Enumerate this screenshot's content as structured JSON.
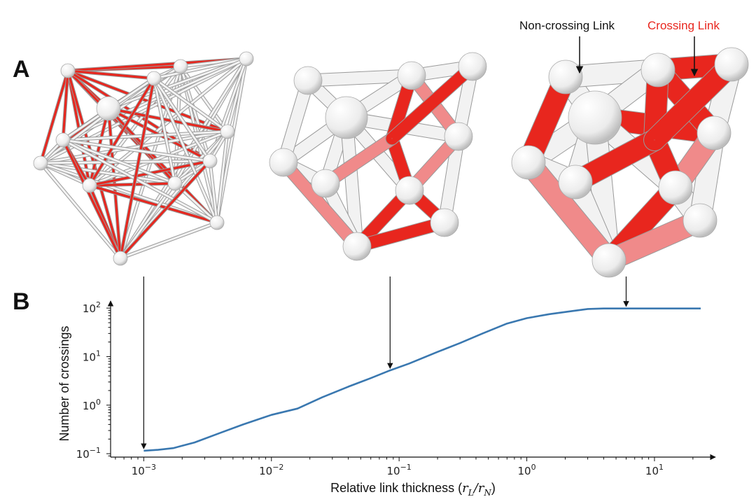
{
  "panel_labels": {
    "a": "A",
    "b": "B"
  },
  "annotations": {
    "non_crossing": "Non-crossing Link",
    "crossing": "Crossing Link"
  },
  "colors": {
    "line": "#3a78b0",
    "crossing_link": "#e8261e",
    "crossing_link_light": "#f08a8a",
    "non_crossing_link": "#f2f2f2",
    "node": "#f5f5f5"
  },
  "chart_data": {
    "type": "line",
    "xlabel_main": "Relative link thickness (",
    "xlabel_sym1": "r",
    "xlabel_sub1": "L",
    "xlabel_sep": "/",
    "xlabel_sym2": "r",
    "xlabel_sub2": "N",
    "xlabel_close": ")",
    "ylabel": "Number of crossings",
    "x_scale": "log",
    "y_scale": "log",
    "xlim": [
      0.00055,
      30
    ],
    "ylim": [
      0.085,
      140
    ],
    "x_ticks": [
      {
        "value": 0.001,
        "base": "10",
        "exp": "−3"
      },
      {
        "value": 0.01,
        "base": "10",
        "exp": "−2"
      },
      {
        "value": 0.1,
        "base": "10",
        "exp": "−1"
      },
      {
        "value": 1,
        "base": "10",
        "exp": "0"
      },
      {
        "value": 10,
        "base": "10",
        "exp": "1"
      }
    ],
    "y_ticks": [
      {
        "value": 0.1,
        "base": "10",
        "exp": "−1"
      },
      {
        "value": 1,
        "base": "10",
        "exp": "0"
      },
      {
        "value": 10,
        "base": "10",
        "exp": "1"
      },
      {
        "value": 100,
        "base": "10",
        "exp": "2"
      }
    ],
    "series": [
      {
        "x": [
          0.001,
          0.0013,
          0.0017,
          0.0025,
          0.004,
          0.006,
          0.01,
          0.016,
          0.025,
          0.04,
          0.06,
          0.085,
          0.12,
          0.2,
          0.3,
          0.45,
          0.7,
          1.0,
          1.5,
          2.2,
          3.0,
          4.0,
          6.0,
          10,
          23
        ],
        "y": [
          0.115,
          0.12,
          0.13,
          0.17,
          0.27,
          0.4,
          0.63,
          0.85,
          1.45,
          2.4,
          3.6,
          5.2,
          7.2,
          12.5,
          19.0,
          30.0,
          48.0,
          62.0,
          75.0,
          86.0,
          96.0,
          98.0,
          98.0,
          98.0,
          98.0
        ]
      }
    ],
    "pointer_arrows": [
      {
        "x": 0.001,
        "y": 0.115
      },
      {
        "x": 0.085,
        "y": 5.2
      },
      {
        "x": 6.0,
        "y": 98.0
      }
    ],
    "grid": false
  }
}
